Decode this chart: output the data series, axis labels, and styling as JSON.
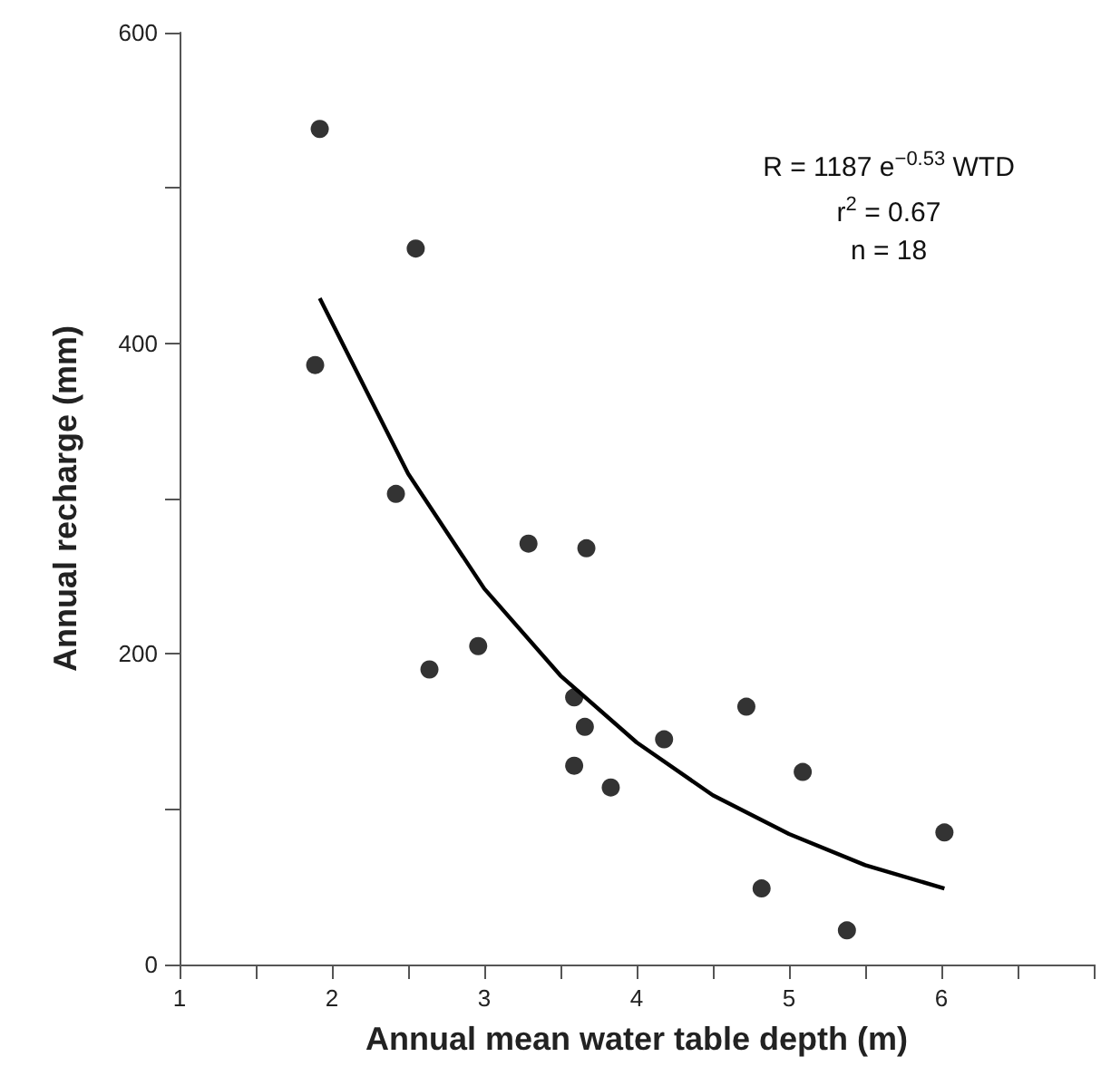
{
  "chart_data": {
    "type": "scatter",
    "xlabel": "Annual mean water table depth (m)",
    "ylabel": "Annual recharge (mm)",
    "annotations": [
      "R = 1187 e$^{−0.53}$ WTD",
      "r$^{2}$ = 0.67",
      "n = 18"
    ],
    "xlim": [
      1,
      7
    ],
    "xticks": [
      1,
      {
        "value": 1.5,
        "label": null
      },
      2,
      {
        "value": 2.5,
        "label": null
      },
      3,
      {
        "value": 3.5,
        "label": null
      },
      4,
      {
        "value": 4.5,
        "label": null
      },
      5,
      {
        "value": 5.5,
        "label": null
      },
      6,
      {
        "value": 6.5,
        "label": null
      },
      {
        "value": 7,
        "label": null
      }
    ],
    "ylim": [
      0,
      600
    ],
    "yticks": [
      0,
      {
        "value": 100,
        "label": null
      },
      200,
      {
        "value": 300,
        "label": null
      },
      400,
      {
        "value": 500,
        "label": null
      },
      600
    ],
    "marker": "circle",
    "series": [
      {
        "type": "scatter",
        "color": "#000000",
        "x": [
          1.92,
          2.55,
          1.89,
          2.42,
          3.29,
          3.67,
          2.96,
          2.64,
          3.59,
          3.66,
          4.18,
          4.72,
          3.59,
          3.83,
          5.09,
          6.02,
          4.82,
          5.38
        ],
        "values": [
          538,
          461,
          386,
          303,
          271,
          268,
          205,
          190,
          172,
          153,
          145,
          166,
          128,
          114,
          124,
          85,
          49,
          22
        ]
      },
      {
        "type": "line",
        "color": "#000000",
        "marker": "none",
        "x": [
          1.92,
          2.5,
          3,
          3.5,
          4,
          4.5,
          5,
          5.5,
          6.02
        ],
        "values": [
          429,
          316,
          242,
          186,
          143,
          109,
          84,
          64,
          49
        ]
      }
    ]
  }
}
